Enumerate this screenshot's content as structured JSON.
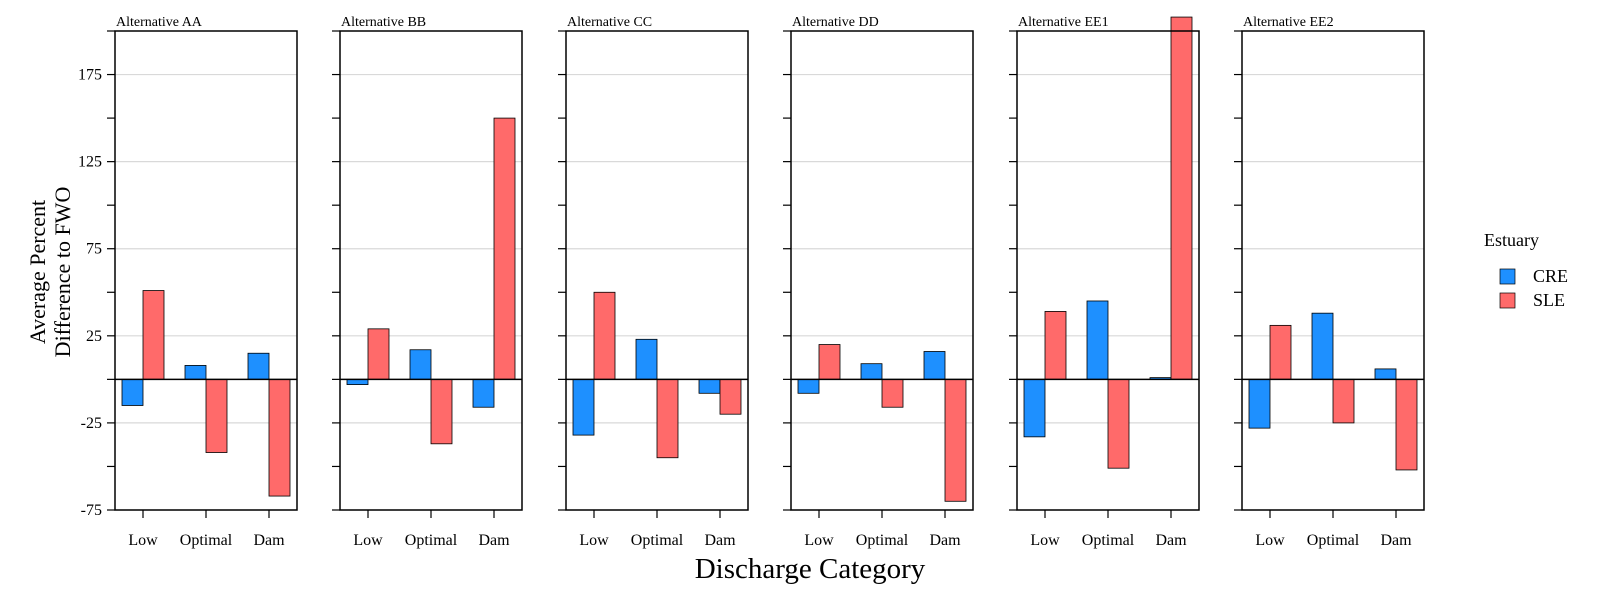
{
  "chart_data": {
    "type": "bar",
    "xlabel": "Discharge Category",
    "ylabel_lines": [
      "Average Percent",
      "Difference to FWO"
    ],
    "categories": [
      "Low",
      "Optimal",
      "Dam"
    ],
    "ylim": [
      -75,
      200
    ],
    "yticks": [
      -75,
      -25,
      25,
      75,
      125,
      175
    ],
    "grid": true,
    "legend": {
      "title": "Estuary",
      "position": "right",
      "items": [
        {
          "name": "CRE",
          "color": "#1e90ff"
        },
        {
          "name": "SLE",
          "color": "#ff6a6a"
        }
      ]
    },
    "facets": [
      {
        "title": "Alternative AA",
        "series": [
          {
            "name": "CRE",
            "values": [
              -15,
              8,
              15
            ]
          },
          {
            "name": "SLE",
            "values": [
              51,
              -42,
              -67
            ]
          }
        ]
      },
      {
        "title": "Alternative BB",
        "series": [
          {
            "name": "CRE",
            "values": [
              -3,
              17,
              -16
            ]
          },
          {
            "name": "SLE",
            "values": [
              29,
              -37,
              150
            ]
          }
        ]
      },
      {
        "title": "Alternative CC",
        "series": [
          {
            "name": "CRE",
            "values": [
              -32,
              23,
              -8
            ]
          },
          {
            "name": "SLE",
            "values": [
              50,
              -45,
              -20
            ]
          }
        ]
      },
      {
        "title": "Alternative DD",
        "series": [
          {
            "name": "CRE",
            "values": [
              -8,
              9,
              16
            ]
          },
          {
            "name": "SLE",
            "values": [
              20,
              -16,
              -70
            ]
          }
        ]
      },
      {
        "title": "Alternative EE1",
        "series": [
          {
            "name": "CRE",
            "values": [
              -33,
              45,
              1
            ]
          },
          {
            "name": "SLE",
            "values": [
              39,
              -51,
              208
            ]
          }
        ]
      },
      {
        "title": "Alternative EE2",
        "series": [
          {
            "name": "CRE",
            "values": [
              -28,
              38,
              6
            ]
          },
          {
            "name": "SLE",
            "values": [
              31,
              -25,
              -52
            ]
          }
        ]
      }
    ]
  }
}
